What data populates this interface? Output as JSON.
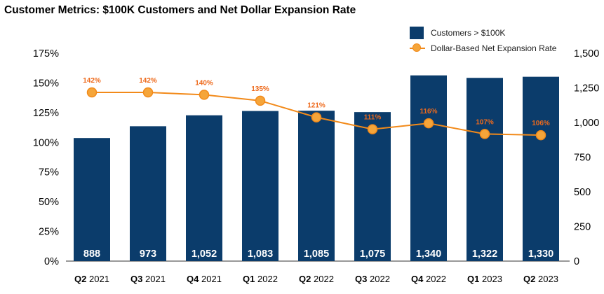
{
  "chart_data": {
    "type": "bar",
    "title": "Customer Metrics: $100K Customers and Net Dollar Expansion Rate",
    "categories": [
      {
        "bold": "Q2",
        "rest": " 2021"
      },
      {
        "bold": "Q3",
        "rest": " 2021"
      },
      {
        "bold": "Q4",
        "rest": " 2021"
      },
      {
        "bold": "Q1",
        "rest": " 2022"
      },
      {
        "bold": "Q2",
        "rest": " 2022"
      },
      {
        "bold": "Q3",
        "rest": " 2022"
      },
      {
        "bold": "Q4",
        "rest": " 2022"
      },
      {
        "bold": "Q1",
        "rest": " 2023"
      },
      {
        "bold": "Q2",
        "rest": " 2023"
      }
    ],
    "series": [
      {
        "name": "Customers > $100K",
        "type": "bar",
        "axis": "right",
        "color": "#0b3c6b",
        "values": [
          888,
          973,
          1052,
          1083,
          1085,
          1075,
          1340,
          1322,
          1330
        ],
        "labels": [
          "888",
          "973",
          "1,052",
          "1,083",
          "1,085",
          "1,075",
          "1,340",
          "1,322",
          "1,330"
        ]
      },
      {
        "name": "Dollar-Based Net Expansion Rate",
        "type": "line",
        "axis": "left",
        "color": "#f28a1a",
        "values": [
          142,
          142,
          140,
          135,
          121,
          111,
          116,
          107,
          106
        ],
        "labels": [
          "142%",
          "142%",
          "140%",
          "135%",
          "121%",
          "111%",
          "116%",
          "107%",
          "106%"
        ]
      }
    ],
    "left_axis": {
      "ticks": [
        "0%",
        "25%",
        "50%",
        "75%",
        "100%",
        "125%",
        "150%",
        "175%"
      ]
    },
    "right_axis": {
      "ticks": [
        "0",
        "250",
        "500",
        "750",
        "1,000",
        "1,250",
        "1,500"
      ],
      "ylim": [
        0,
        1500
      ]
    },
    "legend_position": "top-right",
    "grid": false
  }
}
